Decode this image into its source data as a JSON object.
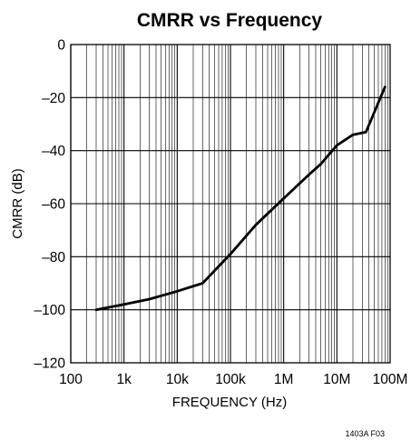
{
  "chart_data": {
    "type": "line",
    "title": "CMRR vs Frequency",
    "xlabel": "FREQUENCY (Hz)",
    "ylabel": "CMRR (dB)",
    "x_scale": "log",
    "xlim": [
      100,
      100000000
    ],
    "ylim": [
      -120,
      0
    ],
    "x_ticks": [
      100,
      1000,
      10000,
      100000,
      1000000,
      10000000,
      100000000
    ],
    "x_tick_labels": [
      "100",
      "1k",
      "10k",
      "100k",
      "1M",
      "10M",
      "100M"
    ],
    "y_ticks": [
      0,
      -20,
      -40,
      -60,
      -80,
      -100,
      -120
    ],
    "y_tick_labels": [
      "0",
      "–20",
      "–40",
      "–60",
      "–80",
      "–100",
      "–120"
    ],
    "grid": true,
    "series": [
      {
        "x": [
          300,
          1000,
          3000,
          10000,
          30000,
          100000,
          300000,
          1000000,
          3000000,
          5000000,
          10000000,
          20000000,
          35000000,
          80000000
        ],
        "y": [
          -100,
          -98,
          -96,
          -93,
          -90,
          -79,
          -68,
          -58,
          -49,
          -45,
          -38,
          -34,
          -33,
          -16
        ]
      }
    ],
    "figure_code": "1403A F03"
  }
}
